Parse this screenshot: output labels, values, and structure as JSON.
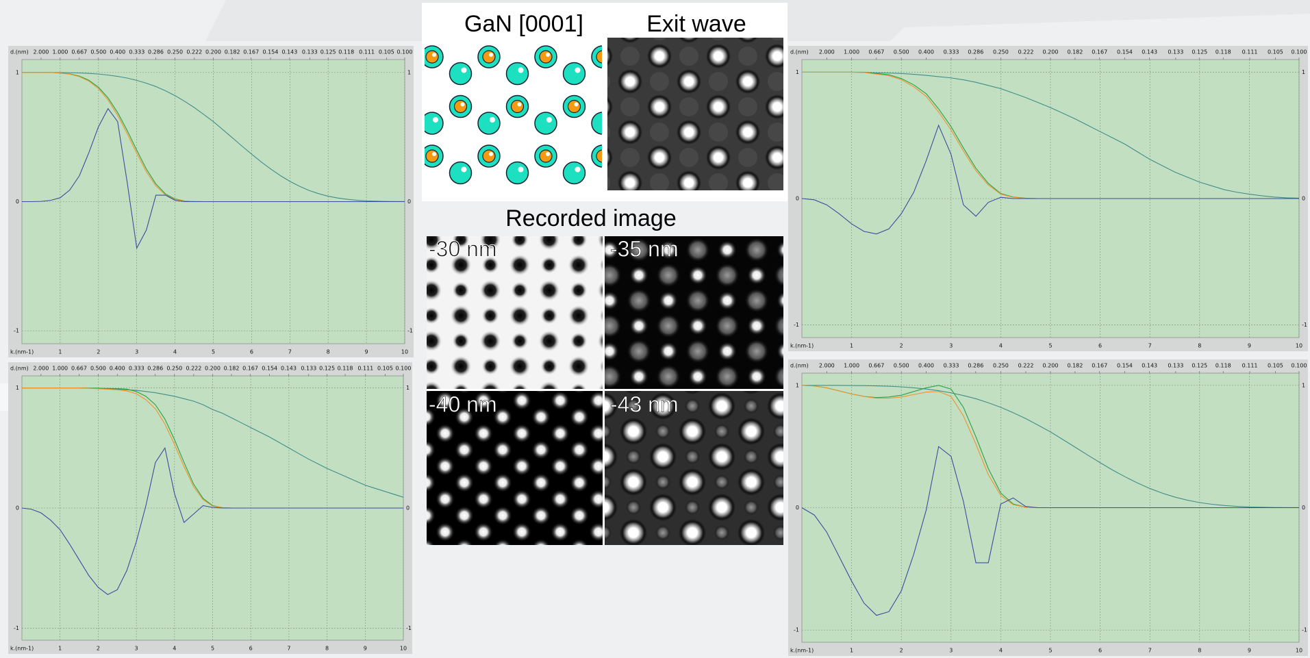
{
  "panels": {
    "structure_title": "GaN [0001]",
    "exit_wave_title": "Exit wave",
    "recorded_title": "Recorded image",
    "defocus": [
      "-30 nm",
      "-35 nm",
      "-40 nm",
      "-43 nm"
    ]
  },
  "chart_data": [
    {
      "type": "line",
      "xlabel": "k.(nm-1)",
      "x2label": "d.(nm)",
      "x2scale": "reciprocal",
      "grid": true,
      "background": "#c3dfc2",
      "xlim": [
        0,
        10
      ],
      "ylim": [
        -1.1,
        1.1
      ],
      "xticks": [
        1,
        2,
        3,
        4,
        5,
        6,
        7,
        8,
        9,
        10
      ],
      "yticks": [
        -1,
        0,
        1
      ],
      "x2ticks": [
        {
          "value": 2,
          "label": "2.000"
        },
        {
          "value": 1,
          "label": "1.000"
        },
        0.667,
        {
          "value": 0.5,
          "label": "0.500"
        },
        {
          "value": 0.4,
          "label": "0.400"
        },
        0.333,
        0.286,
        {
          "value": 0.25,
          "label": "0.250"
        },
        0.222,
        {
          "value": 0.2,
          "label": "0.200"
        },
        0.182,
        0.167,
        0.154,
        0.143,
        0.133,
        0.125,
        0.118,
        0.111,
        0.105,
        {
          "value": 0.1,
          "label": "0.100"
        }
      ],
      "x": [
        0,
        0.25,
        0.5,
        0.75,
        1,
        1.25,
        1.5,
        1.75,
        2,
        2.25,
        2.5,
        2.75,
        3,
        3.25,
        3.5,
        3.75,
        4,
        4.25,
        4.5,
        4.75,
        5,
        5.25,
        5.5,
        5.75,
        6,
        6.25,
        6.5,
        6.75,
        7,
        7.25,
        7.5,
        7.75,
        8,
        8.25,
        8.5,
        8.75,
        9,
        9.25,
        9.5,
        9.75,
        10
      ],
      "series": [
        {
          "color": "#3f8d8a",
          "values": [
            1,
            1,
            1,
            1,
            0.999,
            0.998,
            0.996,
            0.993,
            0.988,
            0.98,
            0.97,
            0.957,
            0.939,
            0.917,
            0.891,
            0.858,
            0.821,
            0.777,
            0.729,
            0.675,
            0.62,
            0.557,
            0.494,
            0.43,
            0.368,
            0.308,
            0.253,
            0.202,
            0.157,
            0.119,
            0.087,
            0.062,
            0.042,
            0.028,
            0.018,
            0.011,
            0.006,
            0.004,
            0.002,
            0.001,
            0.001
          ]
        },
        {
          "color": "#27a342",
          "values": [
            1,
            1,
            1,
            1,
            0.996,
            0.989,
            0.972,
            0.94,
            0.886,
            0.803,
            0.69,
            0.551,
            0.398,
            0.253,
            0.137,
            0.06,
            0.021,
            0.005,
            0.001,
            0,
            0,
            0,
            0,
            0,
            0,
            0,
            0,
            0,
            0,
            0,
            0,
            0,
            0,
            0,
            0,
            0,
            0,
            0,
            0,
            0,
            0
          ]
        },
        {
          "color": "#f2912b",
          "values": [
            1,
            1,
            1,
            1,
            0.995,
            0.987,
            0.968,
            0.933,
            0.875,
            0.787,
            0.669,
            0.527,
            0.374,
            0.232,
            0.122,
            0.051,
            0.017,
            0.004,
            0.001,
            0,
            0,
            0,
            0,
            0,
            0,
            0,
            0,
            0,
            0,
            0,
            0,
            0,
            0,
            0,
            0,
            0,
            0,
            0,
            0,
            0,
            0
          ]
        },
        {
          "color": "#3a4c9e",
          "values": [
            0,
            0,
            0.002,
            0.01,
            0.03,
            0.09,
            0.2,
            0.38,
            0.58,
            0.72,
            0.62,
            0.15,
            -0.36,
            -0.22,
            0.05,
            0.05,
            0.01,
            0,
            0,
            0,
            0,
            0,
            0,
            0,
            0,
            0,
            0,
            0,
            0,
            0,
            0,
            0,
            0,
            0,
            0,
            0,
            0,
            0,
            0,
            0,
            0
          ]
        }
      ]
    },
    {
      "type": "line",
      "xlabel": "k.(nm-1)",
      "x2label": "d.(nm)",
      "x2scale": "reciprocal",
      "grid": true,
      "background": "#c3dfc2",
      "xlim": [
        0,
        10
      ],
      "ylim": [
        -1.1,
        1.1
      ],
      "xticks": [
        1,
        2,
        3,
        4,
        5,
        6,
        7,
        8,
        9,
        10
      ],
      "yticks": [
        -1,
        0,
        1
      ],
      "x2ticks": [
        {
          "value": 2,
          "label": "2.000"
        },
        {
          "value": 1,
          "label": "1.000"
        },
        0.667,
        {
          "value": 0.5,
          "label": "0.500"
        },
        {
          "value": 0.4,
          "label": "0.400"
        },
        0.333,
        0.286,
        {
          "value": 0.25,
          "label": "0.250"
        },
        0.222,
        {
          "value": 0.2,
          "label": "0.200"
        },
        0.182,
        0.167,
        0.154,
        0.143,
        0.133,
        0.125,
        0.118,
        0.111,
        0.105,
        {
          "value": 0.1,
          "label": "0.100"
        }
      ],
      "x": [
        0,
        0.25,
        0.5,
        0.75,
        1,
        1.25,
        1.5,
        1.75,
        2,
        2.25,
        2.5,
        2.75,
        3,
        3.25,
        3.5,
        3.75,
        4,
        4.25,
        4.5,
        4.75,
        5,
        5.25,
        5.5,
        5.75,
        6,
        6.25,
        6.5,
        6.75,
        7,
        7.25,
        7.5,
        7.75,
        8,
        8.25,
        8.5,
        8.75,
        9,
        9.25,
        9.5,
        9.75,
        10
      ],
      "series": [
        {
          "color": "#3f8d8a",
          "values": [
            1,
            1,
            1,
            1,
            1,
            1,
            1,
            0.998,
            0.995,
            0.993,
            0.99,
            0.985,
            0.98,
            0.97,
            0.96,
            0.945,
            0.93,
            0.91,
            0.89,
            0.86,
            0.82,
            0.79,
            0.75,
            0.71,
            0.67,
            0.63,
            0.59,
            0.545,
            0.5,
            0.455,
            0.41,
            0.37,
            0.33,
            0.295,
            0.26,
            0.225,
            0.19,
            0.165,
            0.14,
            0.115,
            0.09
          ]
        },
        {
          "color": "#27a342",
          "values": [
            1,
            1,
            1,
            1,
            1,
            1,
            1,
            0.999,
            0.998,
            0.996,
            0.994,
            0.99,
            0.97,
            0.93,
            0.86,
            0.74,
            0.57,
            0.38,
            0.2,
            0.08,
            0.02,
            0.004,
            0,
            0,
            0,
            0,
            0,
            0,
            0,
            0,
            0,
            0,
            0,
            0,
            0,
            0,
            0,
            0,
            0,
            0,
            0
          ]
        },
        {
          "color": "#f2912b",
          "values": [
            1,
            1,
            1,
            1,
            1,
            1,
            1,
            0.997,
            0.993,
            0.989,
            0.984,
            0.975,
            0.951,
            0.902,
            0.826,
            0.699,
            0.53,
            0.346,
            0.178,
            0.069,
            0.016,
            0.003,
            0,
            0,
            0,
            0,
            0,
            0,
            0,
            0,
            0,
            0,
            0,
            0,
            0,
            0,
            0,
            0,
            0,
            0,
            0
          ]
        },
        {
          "color": "#3a4c9e",
          "values": [
            0,
            -0.01,
            -0.04,
            -0.1,
            -0.18,
            -0.3,
            -0.43,
            -0.56,
            -0.66,
            -0.72,
            -0.68,
            -0.52,
            -0.28,
            0.02,
            0.38,
            0.5,
            0.12,
            -0.12,
            -0.05,
            0.02,
            0.005,
            0,
            0,
            0,
            0,
            0,
            0,
            0,
            0,
            0,
            0,
            0,
            0,
            0,
            0,
            0,
            0,
            0,
            0,
            0,
            0
          ]
        }
      ]
    },
    {
      "type": "line",
      "xlabel": "k.(nm-1)",
      "x2label": "d.(nm)",
      "x2scale": "reciprocal",
      "grid": true,
      "background": "#c3dfc2",
      "xlim": [
        0,
        10
      ],
      "ylim": [
        -1.1,
        1.1
      ],
      "xticks": [
        1,
        2,
        3,
        4,
        5,
        6,
        7,
        8,
        9,
        10
      ],
      "yticks": [
        -1,
        0,
        1
      ],
      "x2ticks": [
        {
          "value": 2,
          "label": "2.000"
        },
        {
          "value": 1,
          "label": "1.000"
        },
        0.667,
        {
          "value": 0.5,
          "label": "0.500"
        },
        {
          "value": 0.4,
          "label": "0.400"
        },
        0.333,
        0.286,
        {
          "value": 0.25,
          "label": "0.250"
        },
        0.222,
        {
          "value": 0.2,
          "label": "0.200"
        },
        0.182,
        0.167,
        0.154,
        0.143,
        0.133,
        0.125,
        0.118,
        0.111,
        0.105,
        {
          "value": 0.1,
          "label": "0.100"
        }
      ],
      "x": [
        0,
        0.25,
        0.5,
        0.75,
        1,
        1.25,
        1.5,
        1.75,
        2,
        2.25,
        2.5,
        2.75,
        3,
        3.25,
        3.5,
        3.75,
        4,
        4.25,
        4.5,
        4.75,
        5,
        5.25,
        5.5,
        5.75,
        6,
        6.25,
        6.5,
        6.75,
        7,
        7.25,
        7.5,
        7.75,
        8,
        8.25,
        8.5,
        8.75,
        9,
        9.25,
        9.5,
        9.75,
        10
      ],
      "series": [
        {
          "color": "#3f8d8a",
          "values": [
            1,
            1,
            1,
            1,
            1,
            0.998,
            0.995,
            0.993,
            0.99,
            0.983,
            0.975,
            0.965,
            0.955,
            0.94,
            0.92,
            0.895,
            0.87,
            0.835,
            0.8,
            0.76,
            0.72,
            0.675,
            0.63,
            0.58,
            0.53,
            0.48,
            0.43,
            0.37,
            0.31,
            0.26,
            0.21,
            0.17,
            0.13,
            0.1,
            0.07,
            0.05,
            0.035,
            0.022,
            0.012,
            0.006,
            0.003
          ]
        },
        {
          "color": "#27a342",
          "values": [
            1,
            1,
            1,
            1,
            1,
            1,
            0.99,
            0.98,
            0.95,
            0.9,
            0.83,
            0.71,
            0.57,
            0.4,
            0.24,
            0.12,
            0.04,
            0.012,
            0.003,
            0,
            0,
            0,
            0,
            0,
            0,
            0,
            0,
            0,
            0,
            0,
            0,
            0,
            0,
            0,
            0,
            0,
            0,
            0,
            0,
            0,
            0
          ]
        },
        {
          "color": "#f2912b",
          "values": [
            1,
            1,
            1,
            1,
            1,
            0.998,
            0.985,
            0.973,
            0.94,
            0.885,
            0.809,
            0.685,
            0.544,
            0.376,
            0.221,
            0.107,
            0.035,
            0.01,
            0.002,
            0,
            0,
            0,
            0,
            0,
            0,
            0,
            0,
            0,
            0,
            0,
            0,
            0,
            0,
            0,
            0,
            0,
            0,
            0,
            0,
            0,
            0
          ]
        },
        {
          "color": "#3a4c9e",
          "values": [
            0,
            -0.01,
            -0.05,
            -0.12,
            -0.2,
            -0.26,
            -0.28,
            -0.24,
            -0.12,
            0.05,
            0.3,
            0.58,
            0.35,
            -0.05,
            -0.14,
            -0.03,
            0.01,
            0,
            0,
            0,
            0,
            0,
            0,
            0,
            0,
            0,
            0,
            0,
            0,
            0,
            0,
            0,
            0,
            0,
            0,
            0,
            0,
            0,
            0,
            0,
            0
          ]
        }
      ]
    },
    {
      "type": "line",
      "xlabel": "k.(nm-1)",
      "x2label": "d.(nm)",
      "x2scale": "reciprocal",
      "grid": true,
      "background": "#c3dfc2",
      "xlim": [
        0,
        10
      ],
      "ylim": [
        -1.1,
        1.1
      ],
      "xticks": [
        1,
        2,
        3,
        4,
        5,
        6,
        7,
        8,
        9,
        10
      ],
      "yticks": [
        -1,
        0,
        1
      ],
      "x2ticks": [
        {
          "value": 2,
          "label": "2.000"
        },
        {
          "value": 1,
          "label": "1.000"
        },
        0.667,
        {
          "value": 0.5,
          "label": "0.500"
        },
        {
          "value": 0.4,
          "label": "0.400"
        },
        0.333,
        0.286,
        {
          "value": 0.25,
          "label": "0.250"
        },
        0.222,
        {
          "value": 0.2,
          "label": "0.200"
        },
        0.182,
        0.167,
        0.154,
        0.143,
        0.133,
        0.125,
        0.118,
        0.111,
        0.105,
        {
          "value": 0.1,
          "label": "0.100"
        }
      ],
      "x": [
        0,
        0.25,
        0.5,
        0.75,
        1,
        1.25,
        1.5,
        1.75,
        2,
        2.25,
        2.5,
        2.75,
        3,
        3.25,
        3.5,
        3.75,
        4,
        4.25,
        4.5,
        4.75,
        5,
        5.25,
        5.5,
        5.75,
        6,
        6.25,
        6.5,
        6.75,
        7,
        7.25,
        7.5,
        7.75,
        8,
        8.25,
        8.5,
        8.75,
        9,
        9.25,
        9.5,
        9.75,
        10
      ],
      "series": [
        {
          "color": "#3f8d8a",
          "values": [
            1,
            1,
            1,
            1,
            0.999,
            0.998,
            0.996,
            0.993,
            0.988,
            0.98,
            0.97,
            0.957,
            0.939,
            0.917,
            0.891,
            0.858,
            0.821,
            0.777,
            0.729,
            0.675,
            0.62,
            0.557,
            0.494,
            0.43,
            0.368,
            0.308,
            0.253,
            0.202,
            0.157,
            0.119,
            0.087,
            0.062,
            0.042,
            0.028,
            0.018,
            0.011,
            0.006,
            0.004,
            0.002,
            0.001,
            0.001
          ]
        },
        {
          "color": "#27a342",
          "values": [
            1,
            0.995,
            0.98,
            0.955,
            0.93,
            0.91,
            0.9,
            0.905,
            0.92,
            0.95,
            0.98,
            1,
            0.97,
            0.82,
            0.58,
            0.32,
            0.12,
            0.03,
            0.005,
            0,
            0,
            0,
            0,
            0,
            0,
            0,
            0,
            0,
            0,
            0,
            0,
            0,
            0,
            0,
            0,
            0,
            0,
            0,
            0,
            0,
            0
          ]
        },
        {
          "color": "#f2912b",
          "values": [
            1,
            0.995,
            0.98,
            0.955,
            0.93,
            0.91,
            0.895,
            0.895,
            0.905,
            0.925,
            0.945,
            0.95,
            0.91,
            0.75,
            0.52,
            0.27,
            0.1,
            0.025,
            0.004,
            0,
            0,
            0,
            0,
            0,
            0,
            0,
            0,
            0,
            0,
            0,
            0,
            0,
            0,
            0,
            0,
            0,
            0,
            0,
            0,
            0,
            0
          ]
        },
        {
          "color": "#3a4c9e",
          "values": [
            0,
            -0.06,
            -0.2,
            -0.4,
            -0.6,
            -0.78,
            -0.88,
            -0.85,
            -0.68,
            -0.38,
            -0.02,
            0.5,
            0.42,
            0.05,
            -0.45,
            -0.45,
            0.03,
            0.08,
            0.01,
            0,
            0,
            0,
            0,
            0,
            0,
            0,
            0,
            0,
            0,
            0,
            0,
            0,
            0,
            0,
            0,
            0,
            0,
            0,
            0,
            0,
            0
          ]
        }
      ]
    }
  ]
}
